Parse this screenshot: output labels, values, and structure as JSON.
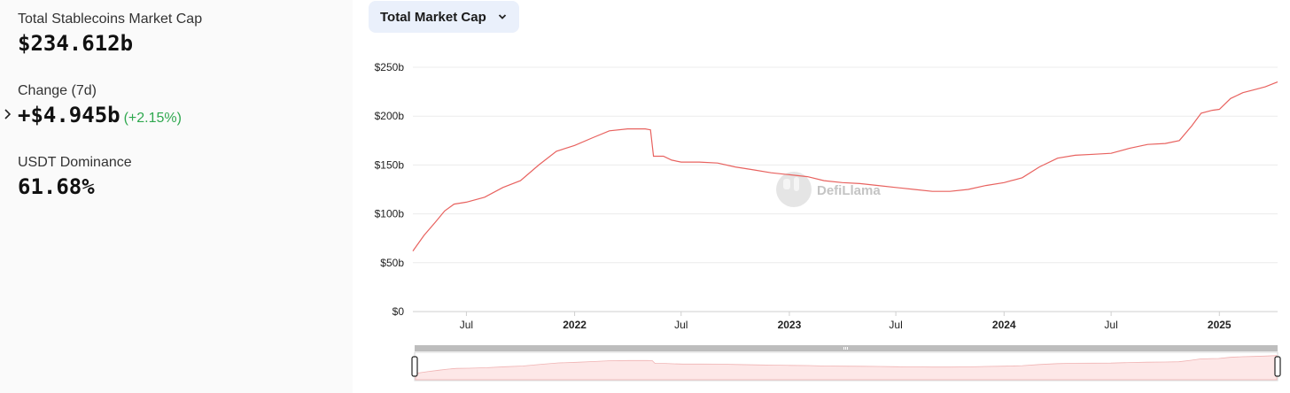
{
  "stats": {
    "market_cap": {
      "label": "Total Stablecoins Market Cap",
      "value": "$234.612b"
    },
    "change": {
      "label": "Change (7d)",
      "value": "+$4.945b",
      "percent": "(+2.15%)"
    },
    "dominance": {
      "label": "USDT Dominance",
      "value": "61.68%"
    }
  },
  "dropdown": {
    "label": "Total Market Cap"
  },
  "watermark": "DefiLlama",
  "colors": {
    "line": "#e8625f",
    "positive": "#2fa84f",
    "grid": "#ececec"
  },
  "chart_data": {
    "type": "line",
    "title": "",
    "xlabel": "",
    "ylabel": "",
    "unit": "billion USD",
    "ylim": [
      0,
      250
    ],
    "yticks": [
      0,
      50,
      100,
      150,
      200,
      250
    ],
    "ytick_labels": [
      "$0",
      "$50b",
      "$100b",
      "$150b",
      "$200b",
      "$250b"
    ],
    "xlim": [
      "2021-04-01",
      "2025-04-10"
    ],
    "xticks": [
      {
        "date": "2021-07-01",
        "label": "Jul",
        "bold": false
      },
      {
        "date": "2022-01-01",
        "label": "2022",
        "bold": true
      },
      {
        "date": "2022-07-01",
        "label": "Jul",
        "bold": false
      },
      {
        "date": "2023-01-01",
        "label": "2023",
        "bold": true
      },
      {
        "date": "2023-07-01",
        "label": "Jul",
        "bold": false
      },
      {
        "date": "2024-01-01",
        "label": "2024",
        "bold": true
      },
      {
        "date": "2024-07-01",
        "label": "Jul",
        "bold": false
      },
      {
        "date": "2025-01-01",
        "label": "2025",
        "bold": true
      }
    ],
    "grid": true,
    "series": [
      {
        "points": [
          [
            "2021-04-01",
            62
          ],
          [
            "2021-04-20",
            78
          ],
          [
            "2021-05-10",
            92
          ],
          [
            "2021-05-25",
            103
          ],
          [
            "2021-06-10",
            110
          ],
          [
            "2021-07-01",
            112
          ],
          [
            "2021-08-01",
            117
          ],
          [
            "2021-09-01",
            127
          ],
          [
            "2021-10-01",
            134
          ],
          [
            "2021-11-01",
            150
          ],
          [
            "2021-12-01",
            164
          ],
          [
            "2022-01-01",
            170
          ],
          [
            "2022-02-01",
            178
          ],
          [
            "2022-03-01",
            185
          ],
          [
            "2022-04-01",
            187
          ],
          [
            "2022-05-01",
            187
          ],
          [
            "2022-05-10",
            186
          ],
          [
            "2022-05-15",
            159
          ],
          [
            "2022-06-01",
            159
          ],
          [
            "2022-06-15",
            155
          ],
          [
            "2022-07-01",
            153
          ],
          [
            "2022-08-01",
            153
          ],
          [
            "2022-09-01",
            152
          ],
          [
            "2022-10-01",
            148
          ],
          [
            "2022-11-01",
            145
          ],
          [
            "2022-12-01",
            142
          ],
          [
            "2023-01-01",
            140
          ],
          [
            "2023-02-01",
            138
          ],
          [
            "2023-03-01",
            134
          ],
          [
            "2023-04-01",
            132
          ],
          [
            "2023-05-01",
            131
          ],
          [
            "2023-06-01",
            129
          ],
          [
            "2023-07-01",
            127
          ],
          [
            "2023-08-01",
            125
          ],
          [
            "2023-09-01",
            123
          ],
          [
            "2023-10-01",
            123
          ],
          [
            "2023-11-01",
            125
          ],
          [
            "2023-12-01",
            129
          ],
          [
            "2024-01-01",
            132
          ],
          [
            "2024-02-01",
            137
          ],
          [
            "2024-03-01",
            148
          ],
          [
            "2024-04-01",
            157
          ],
          [
            "2024-05-01",
            160
          ],
          [
            "2024-06-01",
            161
          ],
          [
            "2024-07-01",
            162
          ],
          [
            "2024-08-01",
            167
          ],
          [
            "2024-09-01",
            171
          ],
          [
            "2024-10-01",
            172
          ],
          [
            "2024-10-25",
            175
          ],
          [
            "2024-11-15",
            190
          ],
          [
            "2024-12-01",
            203
          ],
          [
            "2024-12-20",
            206
          ],
          [
            "2025-01-01",
            207
          ],
          [
            "2025-01-20",
            218
          ],
          [
            "2025-02-10",
            224
          ],
          [
            "2025-03-01",
            227
          ],
          [
            "2025-03-20",
            230
          ],
          [
            "2025-04-10",
            235
          ]
        ]
      }
    ]
  }
}
